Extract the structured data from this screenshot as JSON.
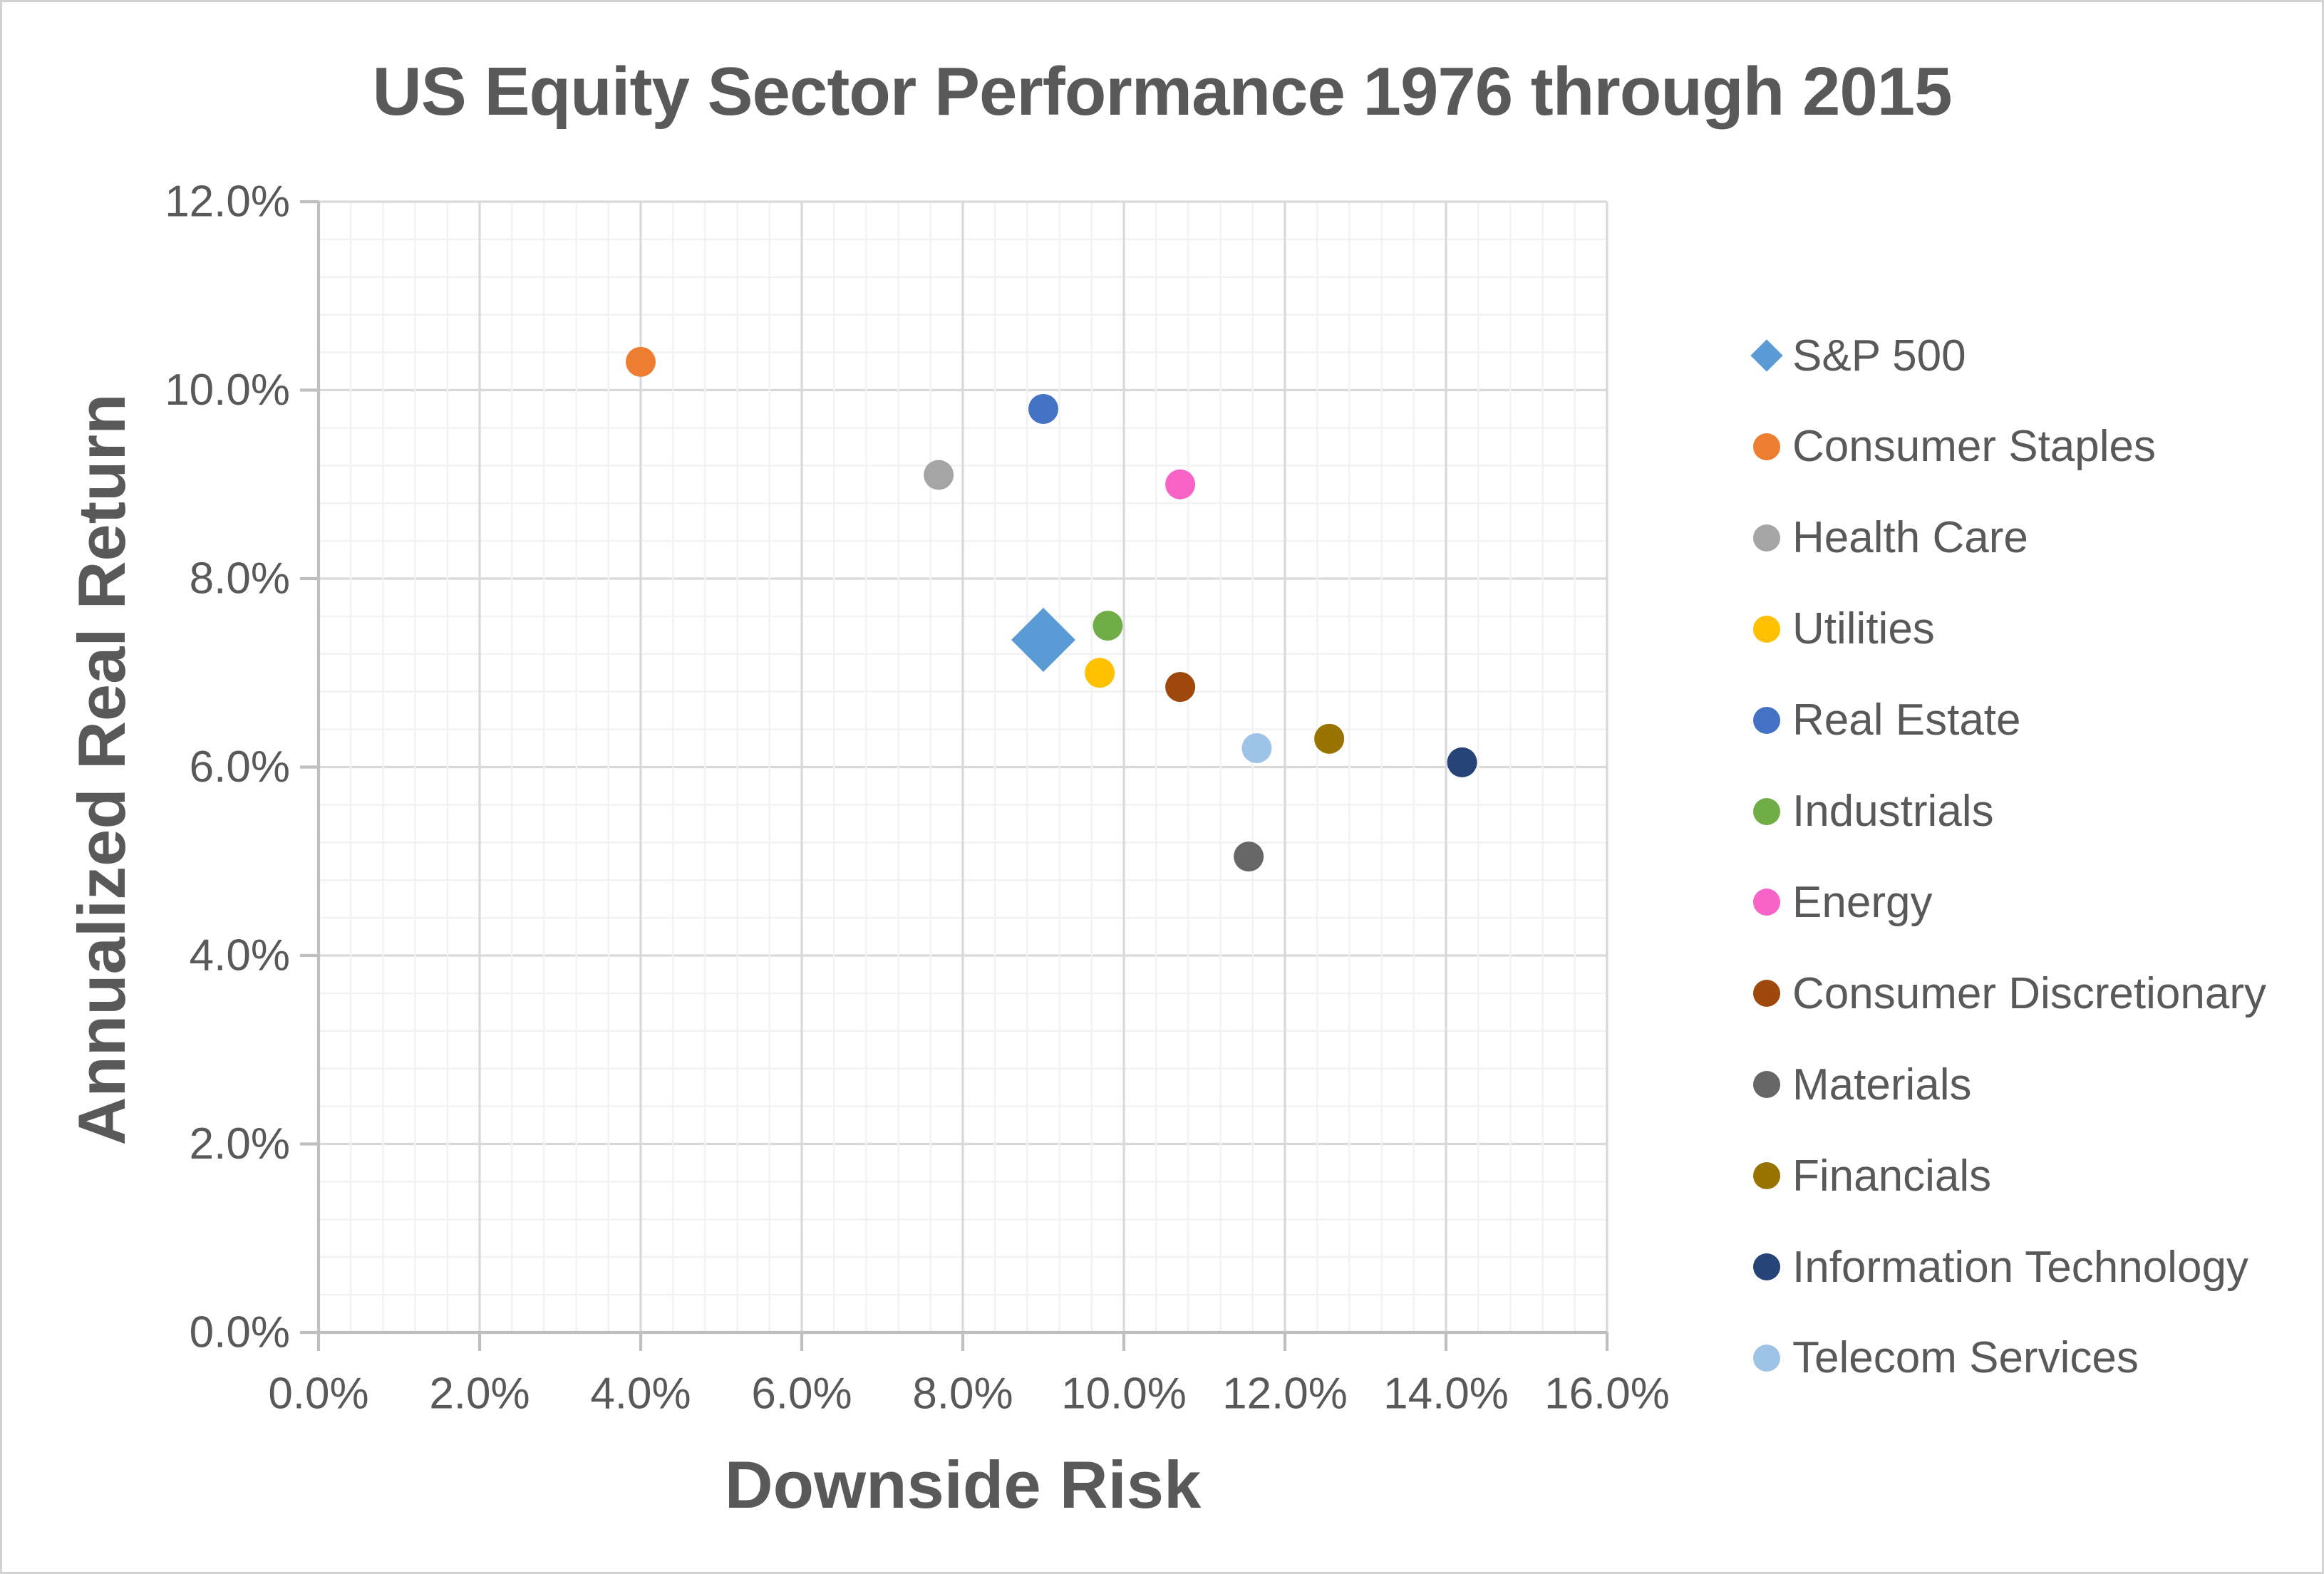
{
  "chart_data": {
    "type": "scatter",
    "title": "US Equity Sector Performance 1976 through 2015",
    "xlabel": "Downside Risk",
    "ylabel": "Annualized Real Return",
    "x_axis": {
      "min": 0,
      "max": 16,
      "major_step": 2,
      "minor_step": 0.4,
      "tick_labels": [
        "0.0%",
        "2.0%",
        "4.0%",
        "6.0%",
        "8.0%",
        "10.0%",
        "12.0%",
        "14.0%",
        "16.0%"
      ]
    },
    "y_axis": {
      "min": 0,
      "max": 12,
      "major_step": 2,
      "minor_step": 0.4,
      "tick_labels": [
        "0.0%",
        "2.0%",
        "4.0%",
        "6.0%",
        "8.0%",
        "10.0%",
        "12.0%"
      ]
    },
    "grid": true,
    "legend_position": "right",
    "series": [
      {
        "name": "S&P 500",
        "marker": "diamond",
        "color": "#5B9BD5",
        "x": 9.0,
        "y": 7.35
      },
      {
        "name": "Consumer Staples",
        "marker": "circle",
        "color": "#ED7D31",
        "x": 4.0,
        "y": 10.3
      },
      {
        "name": "Health Care",
        "marker": "circle",
        "color": "#A5A5A5",
        "x": 7.7,
        "y": 9.1
      },
      {
        "name": "Utilities",
        "marker": "circle",
        "color": "#FFC000",
        "x": 9.7,
        "y": 7.0
      },
      {
        "name": "Real Estate",
        "marker": "circle",
        "color": "#4472C4",
        "x": 9.0,
        "y": 9.8
      },
      {
        "name": "Industrials",
        "marker": "circle",
        "color": "#70AD47",
        "x": 9.8,
        "y": 7.5
      },
      {
        "name": "Energy",
        "marker": "circle",
        "color": "#F763C6",
        "x": 10.7,
        "y": 9.0
      },
      {
        "name": "Consumer Discretionary",
        "marker": "circle",
        "color": "#9E480E",
        "x": 10.7,
        "y": 6.85
      },
      {
        "name": "Materials",
        "marker": "circle",
        "color": "#666666",
        "x": 11.55,
        "y": 5.05
      },
      {
        "name": "Financials",
        "marker": "circle",
        "color": "#997300",
        "x": 12.55,
        "y": 6.3
      },
      {
        "name": "Information Technology",
        "marker": "circle",
        "color": "#264478",
        "x": 14.2,
        "y": 6.05
      },
      {
        "name": "Telecom Services",
        "marker": "circle",
        "color": "#9DC3E6",
        "x": 11.65,
        "y": 6.2
      }
    ],
    "style": {
      "text_color": "#595959",
      "axis_line_color": "#BFBFBF",
      "major_gridline_color": "#D9D9D9",
      "minor_gridline_color": "#F2F2F2"
    }
  }
}
